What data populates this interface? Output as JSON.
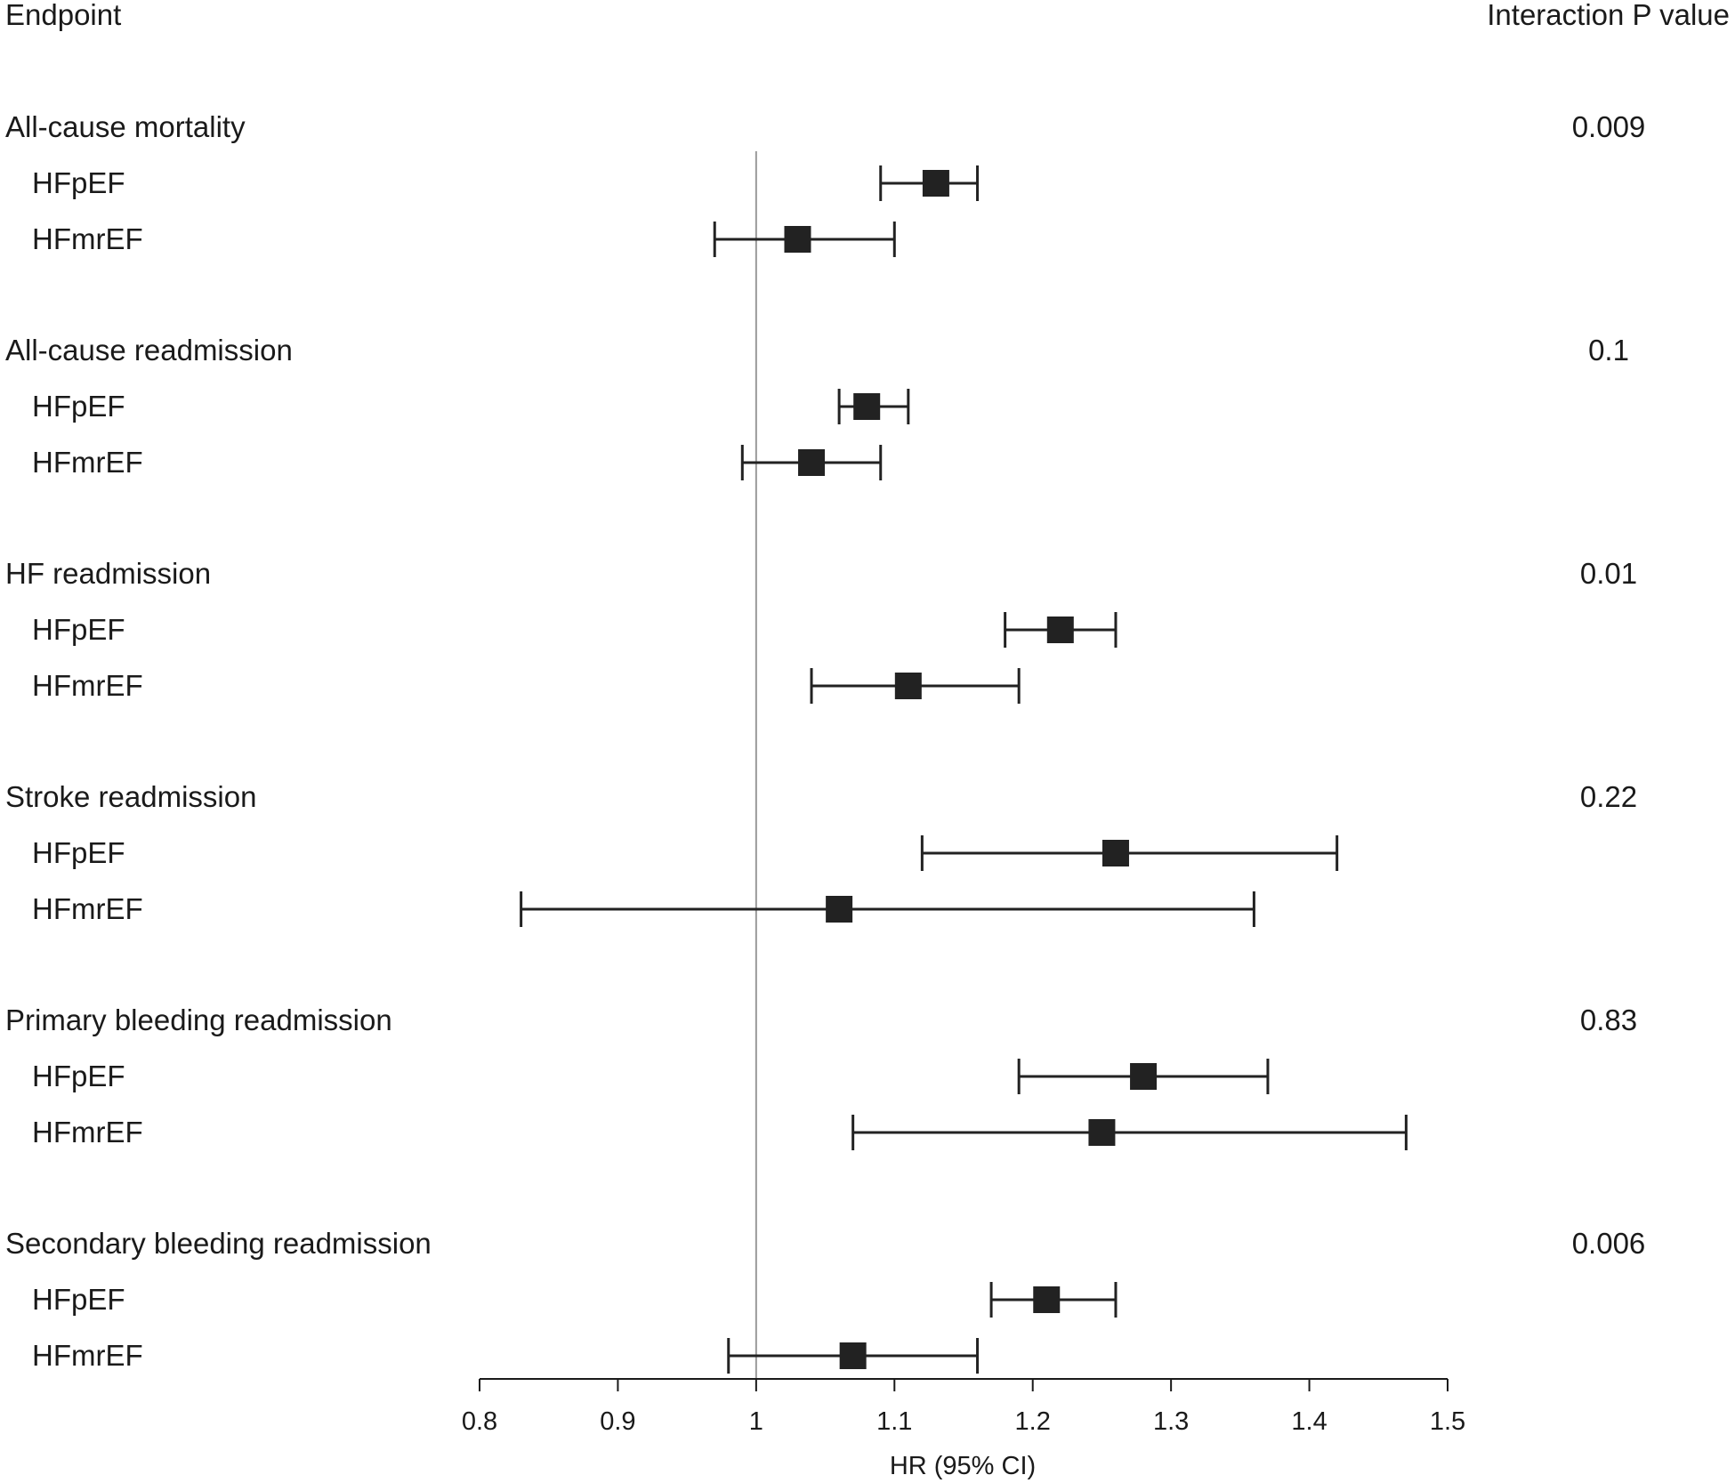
{
  "chart_data": {
    "type": "forest",
    "header_left": "Endpoint",
    "header_right": "Interaction P value",
    "xlabel": "HR (95% CI)",
    "xlim": [
      0.8,
      1.5
    ],
    "xticks": [
      "0.8",
      "0.9",
      "1",
      "1.1",
      "1.2",
      "1.3",
      "1.4",
      "1.5"
    ],
    "reference_line": 1,
    "endpoints": [
      {
        "name": "All-cause mortality",
        "p_value": "0.009",
        "groups": [
          {
            "label": "HFpEF",
            "hr": 1.13,
            "lo": 1.09,
            "hi": 1.16
          },
          {
            "label": "HFmrEF",
            "hr": 1.03,
            "lo": 0.97,
            "hi": 1.1
          }
        ]
      },
      {
        "name": "All-cause readmission",
        "p_value": "0.1",
        "groups": [
          {
            "label": "HFpEF",
            "hr": 1.08,
            "lo": 1.06,
            "hi": 1.11
          },
          {
            "label": "HFmrEF",
            "hr": 1.04,
            "lo": 0.99,
            "hi": 1.09
          }
        ]
      },
      {
        "name": "HF readmission",
        "p_value": "0.01",
        "groups": [
          {
            "label": "HFpEF",
            "hr": 1.22,
            "lo": 1.18,
            "hi": 1.26
          },
          {
            "label": "HFmrEF",
            "hr": 1.11,
            "lo": 1.04,
            "hi": 1.19
          }
        ]
      },
      {
        "name": "Stroke readmission",
        "p_value": "0.22",
        "groups": [
          {
            "label": "HFpEF",
            "hr": 1.26,
            "lo": 1.12,
            "hi": 1.42
          },
          {
            "label": "HFmrEF",
            "hr": 1.06,
            "lo": 0.83,
            "hi": 1.36
          }
        ]
      },
      {
        "name": "Primary bleeding readmission",
        "p_value": "0.83",
        "groups": [
          {
            "label": "HFpEF",
            "hr": 1.28,
            "lo": 1.19,
            "hi": 1.37
          },
          {
            "label": "HFmrEF",
            "hr": 1.25,
            "lo": 1.07,
            "hi": 1.47
          }
        ]
      },
      {
        "name": "Secondary bleeding readmission",
        "p_value": "0.006",
        "groups": [
          {
            "label": "HFpEF",
            "hr": 1.21,
            "lo": 1.17,
            "hi": 1.26
          },
          {
            "label": "HFmrEF",
            "hr": 1.07,
            "lo": 0.98,
            "hi": 1.16
          }
        ]
      }
    ],
    "colors": {
      "text": "#1a1a1a",
      "marker": "#222222",
      "reference_line": "#9a9a9a",
      "axis": "#1a1a1a"
    }
  }
}
